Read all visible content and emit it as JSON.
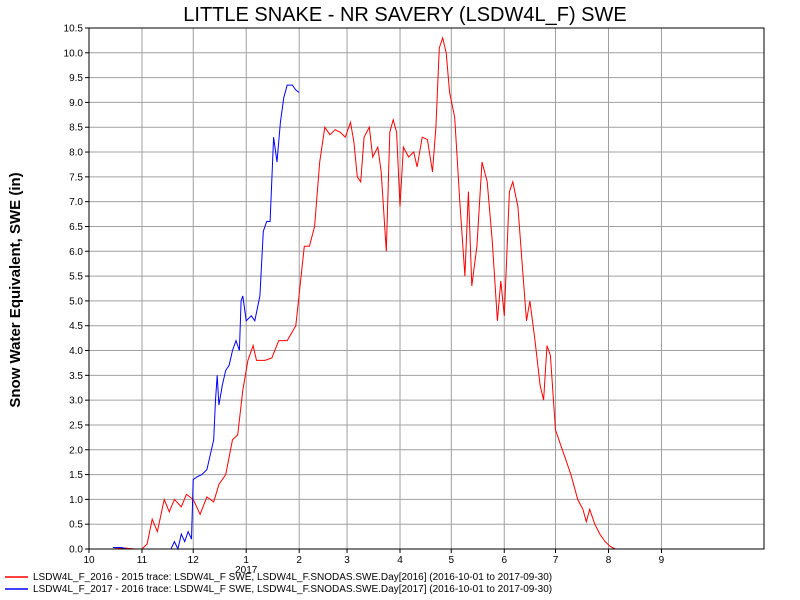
{
  "chart_data": {
    "type": "line",
    "title": "LITTLE SNAKE - NR SAVERY (LSDW4L_F) SWE",
    "xlabel": "",
    "ylabel": "Snow Water Equivalent, SWE (in)",
    "xlim": [
      "2016-10-01",
      "2017-10-31"
    ],
    "ylim": [
      0,
      10.5
    ],
    "x_ticks": [
      {
        "date": "2016-10-01",
        "label": "10"
      },
      {
        "date": "2016-11-01",
        "label": "11"
      },
      {
        "date": "2016-12-01",
        "label": "12"
      },
      {
        "date": "2017-01-01",
        "label": "1"
      },
      {
        "date": "2017-02-01",
        "label": "2"
      },
      {
        "date": "2017-03-01",
        "label": "3"
      },
      {
        "date": "2017-04-01",
        "label": "4"
      },
      {
        "date": "2017-05-01",
        "label": "5"
      },
      {
        "date": "2017-06-01",
        "label": "6"
      },
      {
        "date": "2017-07-01",
        "label": "7"
      },
      {
        "date": "2017-08-01",
        "label": "8"
      },
      {
        "date": "2017-09-01",
        "label": "9"
      }
    ],
    "year_label": {
      "date": "2017-01-01",
      "label": "2017"
    },
    "y_ticks": [
      0,
      0.5,
      1.0,
      1.5,
      2.0,
      2.5,
      3.0,
      3.5,
      4.0,
      4.5,
      5.0,
      5.5,
      6.0,
      6.5,
      7.0,
      7.5,
      8.0,
      8.5,
      9.0,
      9.5,
      10.0,
      10.5
    ],
    "y_tick_labels": [
      "0.0",
      "0.5",
      "1.0",
      "1.5",
      "2.0",
      "2.5",
      "3.0",
      "3.5",
      "4.0",
      "4.5",
      "5.0",
      "5.5",
      "6.0",
      "6.5",
      "7.0",
      "7.5",
      "8.0",
      "8.5",
      "9.0",
      "9.5",
      "10.0",
      "10.5"
    ],
    "grid": true,
    "legend_position": "bottom",
    "series": [
      {
        "name": "LSDW4L_F_2016 - 2015 trace: LSDW4L_F SWE, LSDW4L_F.SNODAS.SWE.Day[2016] (2016-10-01 to 2017-09-30)",
        "color": "#ff0000",
        "points": [
          [
            "2016-10-15",
            0.0
          ],
          [
            "2016-10-22",
            0.02
          ],
          [
            "2016-10-28",
            0.0
          ],
          [
            "2016-11-01",
            0.0
          ],
          [
            "2016-11-04",
            0.1
          ],
          [
            "2016-11-07",
            0.6
          ],
          [
            "2016-11-10",
            0.35
          ],
          [
            "2016-11-14",
            1.0
          ],
          [
            "2016-11-17",
            0.75
          ],
          [
            "2016-11-20",
            1.0
          ],
          [
            "2016-11-24",
            0.85
          ],
          [
            "2016-11-27",
            1.1
          ],
          [
            "2016-12-01",
            1.0
          ],
          [
            "2016-12-05",
            0.7
          ],
          [
            "2016-12-09",
            1.05
          ],
          [
            "2016-12-13",
            0.95
          ],
          [
            "2016-12-16",
            1.3
          ],
          [
            "2016-12-20",
            1.5
          ],
          [
            "2016-12-24",
            2.2
          ],
          [
            "2016-12-27",
            2.3
          ],
          [
            "2016-12-30",
            3.2
          ],
          [
            "2017-01-02",
            3.8
          ],
          [
            "2017-01-05",
            4.1
          ],
          [
            "2017-01-07",
            3.8
          ],
          [
            "2017-01-12",
            3.8
          ],
          [
            "2017-01-16",
            3.85
          ],
          [
            "2017-01-20",
            4.2
          ],
          [
            "2017-01-25",
            4.2
          ],
          [
            "2017-01-30",
            4.5
          ],
          [
            "2017-02-04",
            6.1
          ],
          [
            "2017-02-07",
            6.1
          ],
          [
            "2017-02-10",
            6.5
          ],
          [
            "2017-02-13",
            7.8
          ],
          [
            "2017-02-16",
            8.5
          ],
          [
            "2017-02-19",
            8.35
          ],
          [
            "2017-02-22",
            8.45
          ],
          [
            "2017-02-25",
            8.4
          ],
          [
            "2017-02-28",
            8.3
          ],
          [
            "2017-03-03",
            8.6
          ],
          [
            "2017-03-05",
            8.2
          ],
          [
            "2017-03-07",
            7.5
          ],
          [
            "2017-03-09",
            7.4
          ],
          [
            "2017-03-11",
            8.3
          ],
          [
            "2017-03-14",
            8.5
          ],
          [
            "2017-03-16",
            7.9
          ],
          [
            "2017-03-19",
            8.1
          ],
          [
            "2017-03-21",
            7.6
          ],
          [
            "2017-03-24",
            6.0
          ],
          [
            "2017-03-26",
            8.4
          ],
          [
            "2017-03-28",
            8.65
          ],
          [
            "2017-03-30",
            8.4
          ],
          [
            "2017-04-01",
            6.9
          ],
          [
            "2017-04-03",
            8.1
          ],
          [
            "2017-04-06",
            7.9
          ],
          [
            "2017-04-09",
            8.0
          ],
          [
            "2017-04-11",
            7.7
          ],
          [
            "2017-04-14",
            8.3
          ],
          [
            "2017-04-17",
            8.25
          ],
          [
            "2017-04-20",
            7.6
          ],
          [
            "2017-04-22",
            8.5
          ],
          [
            "2017-04-24",
            10.1
          ],
          [
            "2017-04-26",
            10.3
          ],
          [
            "2017-04-28",
            10.0
          ],
          [
            "2017-04-30",
            9.2
          ],
          [
            "2017-05-03",
            8.7
          ],
          [
            "2017-05-06",
            7.0
          ],
          [
            "2017-05-09",
            5.5
          ],
          [
            "2017-05-11",
            7.2
          ],
          [
            "2017-05-13",
            5.3
          ],
          [
            "2017-05-16",
            6.1
          ],
          [
            "2017-05-19",
            7.8
          ],
          [
            "2017-05-22",
            7.4
          ],
          [
            "2017-05-25",
            6.2
          ],
          [
            "2017-05-28",
            4.6
          ],
          [
            "2017-05-30",
            5.4
          ],
          [
            "2017-06-01",
            4.7
          ],
          [
            "2017-06-04",
            7.2
          ],
          [
            "2017-06-06",
            7.4
          ],
          [
            "2017-06-09",
            6.9
          ],
          [
            "2017-06-12",
            5.5
          ],
          [
            "2017-06-14",
            4.6
          ],
          [
            "2017-06-16",
            5.0
          ],
          [
            "2017-06-19",
            4.2
          ],
          [
            "2017-06-22",
            3.3
          ],
          [
            "2017-06-24",
            3.0
          ],
          [
            "2017-06-26",
            4.1
          ],
          [
            "2017-06-28",
            3.9
          ],
          [
            "2017-07-01",
            2.4
          ],
          [
            "2017-07-04",
            2.1
          ],
          [
            "2017-07-07",
            1.8
          ],
          [
            "2017-07-10",
            1.5
          ],
          [
            "2017-07-14",
            1.0
          ],
          [
            "2017-07-17",
            0.8
          ],
          [
            "2017-07-19",
            0.55
          ],
          [
            "2017-07-21",
            0.8
          ],
          [
            "2017-07-24",
            0.5
          ],
          [
            "2017-07-27",
            0.3
          ],
          [
            "2017-07-30",
            0.15
          ],
          [
            "2017-08-02",
            0.05
          ],
          [
            "2017-08-05",
            0.0
          ]
        ]
      },
      {
        "name": "LSDW4L_F_2017 - 2016 trace: LSDW4L_F SWE, LSDW4L_F.SNODAS.SWE.Day[2017] (2016-10-01 to 2017-09-30)",
        "color": "#0000ff",
        "points": [
          [
            "2016-10-15",
            0.03
          ],
          [
            "2016-10-20",
            0.03
          ],
          [
            "2016-10-23",
            0.0
          ],
          [
            "2016-11-18",
            0.0
          ],
          [
            "2016-11-20",
            0.15
          ],
          [
            "2016-11-22",
            0.0
          ],
          [
            "2016-11-24",
            0.3
          ],
          [
            "2016-11-26",
            0.15
          ],
          [
            "2016-11-28",
            0.35
          ],
          [
            "2016-11-30",
            0.2
          ],
          [
            "2016-12-01",
            1.4
          ],
          [
            "2016-12-03",
            1.45
          ],
          [
            "2016-12-06",
            1.5
          ],
          [
            "2016-12-09",
            1.6
          ],
          [
            "2016-12-11",
            1.9
          ],
          [
            "2016-12-13",
            2.2
          ],
          [
            "2016-12-14",
            3.0
          ],
          [
            "2016-12-15",
            3.5
          ],
          [
            "2016-12-16",
            2.9
          ],
          [
            "2016-12-18",
            3.3
          ],
          [
            "2016-12-20",
            3.6
          ],
          [
            "2016-12-22",
            3.7
          ],
          [
            "2016-12-24",
            4.0
          ],
          [
            "2016-12-26",
            4.2
          ],
          [
            "2016-12-28",
            4.0
          ],
          [
            "2016-12-29",
            5.0
          ],
          [
            "2016-12-30",
            5.1
          ],
          [
            "2017-01-01",
            4.6
          ],
          [
            "2017-01-04",
            4.7
          ],
          [
            "2017-01-06",
            4.6
          ],
          [
            "2017-01-09",
            5.1
          ],
          [
            "2017-01-11",
            6.4
          ],
          [
            "2017-01-13",
            6.6
          ],
          [
            "2017-01-15",
            6.6
          ],
          [
            "2017-01-17",
            8.3
          ],
          [
            "2017-01-19",
            7.8
          ],
          [
            "2017-01-21",
            8.6
          ],
          [
            "2017-01-23",
            9.1
          ],
          [
            "2017-01-25",
            9.35
          ],
          [
            "2017-01-28",
            9.35
          ],
          [
            "2017-01-30",
            9.25
          ],
          [
            "2017-02-01",
            9.2
          ]
        ]
      }
    ]
  }
}
